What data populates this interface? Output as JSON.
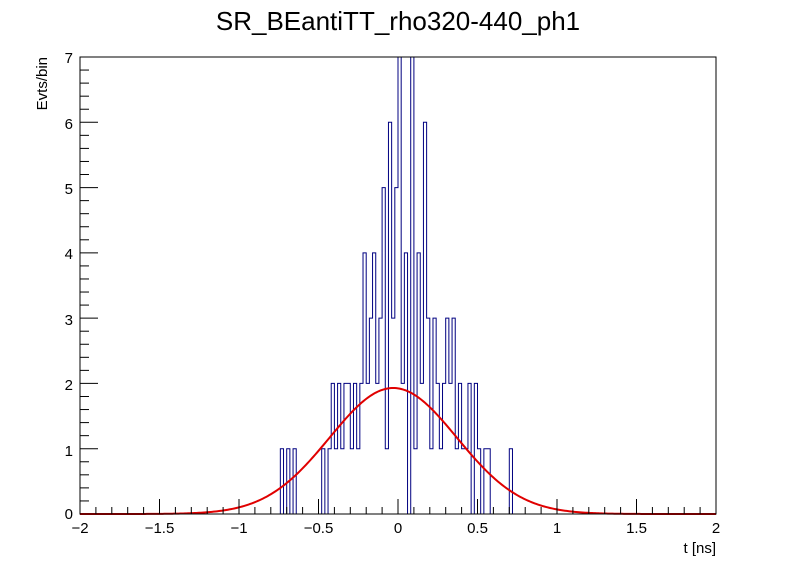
{
  "chart_data": {
    "type": "histogram",
    "title": "SR_BEantiTT_rho320-440_ph1",
    "xlabel": "t [ns]",
    "ylabel": "Evts/bin",
    "xlim": [
      -2,
      2
    ],
    "ylim": [
      0,
      7
    ],
    "x_ticks": [
      "−2",
      "−1.5",
      "−1",
      "−0.5",
      "0",
      "0.5",
      "1",
      "1.5",
      "2"
    ],
    "y_ticks": [
      "0",
      "1",
      "2",
      "3",
      "4",
      "5",
      "6",
      "7"
    ],
    "grid": false,
    "legend": "none",
    "series": [
      {
        "type": "histogram",
        "color": "#000080",
        "bin_width": 0.02,
        "bins": [
          [
            -0.74,
            1
          ],
          [
            -0.72,
            0
          ],
          [
            -0.7,
            1
          ],
          [
            -0.68,
            0
          ],
          [
            -0.66,
            1
          ],
          [
            -0.64,
            0
          ],
          [
            -0.62,
            0
          ],
          [
            -0.6,
            0
          ],
          [
            -0.58,
            0
          ],
          [
            -0.56,
            0
          ],
          [
            -0.54,
            0
          ],
          [
            -0.52,
            0
          ],
          [
            -0.5,
            0
          ],
          [
            -0.48,
            1
          ],
          [
            -0.46,
            0
          ],
          [
            -0.44,
            1
          ],
          [
            -0.42,
            2
          ],
          [
            -0.4,
            1
          ],
          [
            -0.38,
            2
          ],
          [
            -0.36,
            1
          ],
          [
            -0.34,
            2
          ],
          [
            -0.32,
            2
          ],
          [
            -0.3,
            1
          ],
          [
            -0.28,
            2
          ],
          [
            -0.26,
            1
          ],
          [
            -0.24,
            2
          ],
          [
            -0.22,
            4
          ],
          [
            -0.2,
            2
          ],
          [
            -0.18,
            3
          ],
          [
            -0.16,
            4
          ],
          [
            -0.14,
            2
          ],
          [
            -0.12,
            3
          ],
          [
            -0.1,
            5
          ],
          [
            -0.08,
            1
          ],
          [
            -0.06,
            6
          ],
          [
            -0.04,
            3
          ],
          [
            -0.02,
            5
          ],
          [
            0.0,
            7
          ],
          [
            0.02,
            2
          ],
          [
            0.04,
            4
          ],
          [
            0.06,
            0
          ],
          [
            0.08,
            7
          ],
          [
            0.1,
            1
          ],
          [
            0.12,
            4
          ],
          [
            0.14,
            2
          ],
          [
            0.16,
            6
          ],
          [
            0.18,
            3
          ],
          [
            0.2,
            1
          ],
          [
            0.22,
            3
          ],
          [
            0.24,
            2
          ],
          [
            0.26,
            1
          ],
          [
            0.28,
            2
          ],
          [
            0.3,
            3
          ],
          [
            0.32,
            2
          ],
          [
            0.34,
            3
          ],
          [
            0.36,
            1
          ],
          [
            0.38,
            2
          ],
          [
            0.4,
            1
          ],
          [
            0.42,
            1
          ],
          [
            0.44,
            2
          ],
          [
            0.46,
            0
          ],
          [
            0.48,
            2
          ],
          [
            0.5,
            1
          ],
          [
            0.52,
            0
          ],
          [
            0.54,
            1
          ],
          [
            0.56,
            1
          ],
          [
            0.58,
            0
          ],
          [
            0.6,
            0
          ],
          [
            0.62,
            0
          ],
          [
            0.64,
            0
          ],
          [
            0.66,
            0
          ],
          [
            0.68,
            0
          ],
          [
            0.7,
            1
          ],
          [
            0.72,
            0
          ],
          [
            0.74,
            0
          ],
          [
            0.76,
            0
          ],
          [
            0.78,
            0
          ]
        ]
      },
      {
        "type": "line",
        "color": "#e00000",
        "fit": {
          "function": "gaussian",
          "amplitude": 1.93,
          "mean": -0.03,
          "sigma": 0.4
        }
      }
    ]
  }
}
